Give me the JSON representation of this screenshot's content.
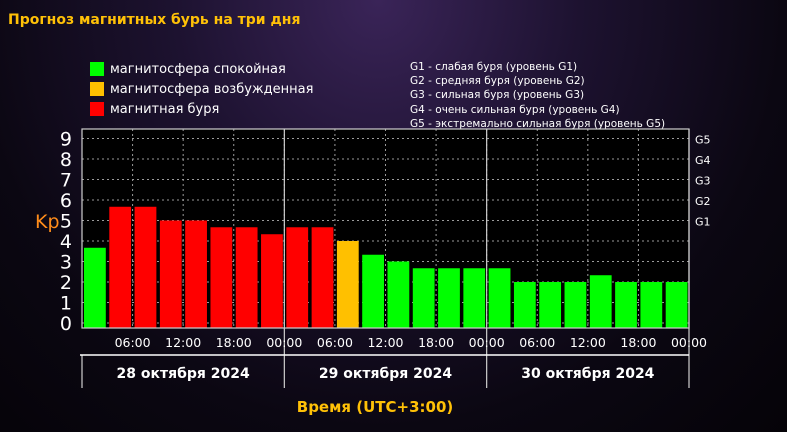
{
  "title": "Прогноз магнитных бурь на три дня",
  "legend": [
    {
      "label": "магнитосфера спокойная",
      "color": "#00ff00"
    },
    {
      "label": "магнитосфера возбужденная",
      "color": "#ffc000"
    },
    {
      "label": "магнитная буря",
      "color": "#ff0000"
    }
  ],
  "g_legend": [
    "G1 - слабая буря (уровень G1)",
    "G2 - средняя буря (уровень G2)",
    "G3 - сильная буря (уровень G3)",
    "G4 - очень сильная буря (уровень G4)",
    "G5 - экстремально сильная буря (уровень G5)"
  ],
  "chart_data": {
    "type": "bar",
    "ylabel": "Kp",
    "xlabel": "Время (UTC+3:00)",
    "ylim": [
      0,
      9
    ],
    "y_ticks": [
      "0",
      "1",
      "2",
      "3",
      "4",
      "5",
      "6",
      "7",
      "8",
      "9"
    ],
    "g_levels": [
      {
        "label": "G1",
        "kp": 5
      },
      {
        "label": "G2",
        "kp": 6
      },
      {
        "label": "G3",
        "kp": 7
      },
      {
        "label": "G4",
        "kp": 8
      },
      {
        "label": "G5",
        "kp": 9
      }
    ],
    "days": [
      "28 октября 2024",
      "29 октября 2024",
      "30 октября 2024"
    ],
    "time_ticks": [
      "06:00",
      "12:00",
      "18:00",
      "00:00",
      "06:00",
      "12:00",
      "18:00",
      "00:00",
      "06:00",
      "12:00",
      "18:00",
      "00:00"
    ],
    "values": [
      3.67,
      5.67,
      5.67,
      5.0,
      5.0,
      4.67,
      4.67,
      4.33,
      4.67,
      4.67,
      4.0,
      3.33,
      3.0,
      2.67,
      2.67,
      2.67,
      2.67,
      2.0,
      2.0,
      2.0,
      2.33,
      2.0,
      2.0,
      2.0
    ],
    "colors": [
      "#00ff00",
      "#ff0000",
      "#ff0000",
      "#ff0000",
      "#ff0000",
      "#ff0000",
      "#ff0000",
      "#ff0000",
      "#ff0000",
      "#ff0000",
      "#ffc000",
      "#00ff00",
      "#00ff00",
      "#00ff00",
      "#00ff00",
      "#00ff00",
      "#00ff00",
      "#00ff00",
      "#00ff00",
      "#00ff00",
      "#00ff00",
      "#00ff00",
      "#00ff00",
      "#00ff00"
    ],
    "grid": true
  }
}
